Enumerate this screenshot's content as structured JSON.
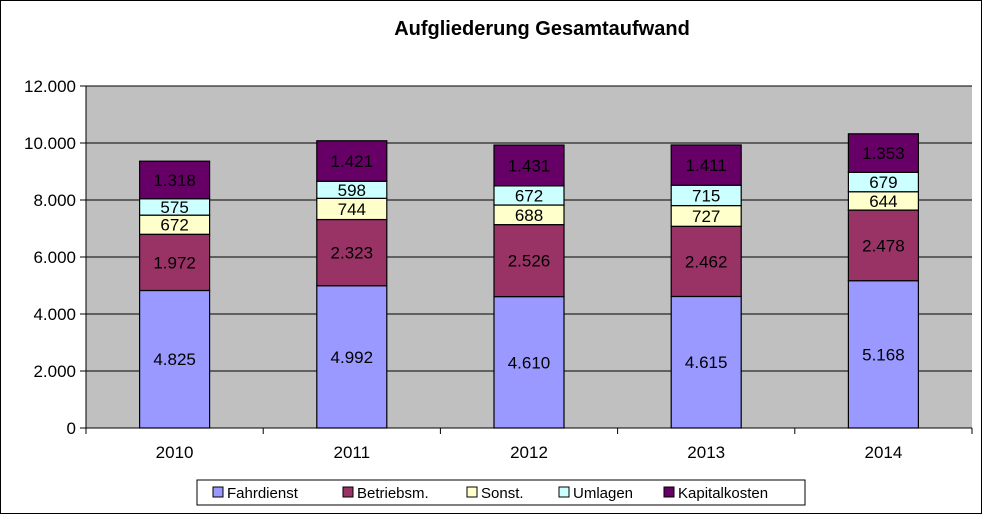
{
  "chart_data": {
    "type": "bar",
    "stacked": true,
    "title": "Aufgliederung Gesamtaufwand",
    "xlabel": "",
    "ylabel": "",
    "categories": [
      "2010",
      "2011",
      "2012",
      "2013",
      "2014"
    ],
    "ylim": [
      0,
      12000
    ],
    "yticks": [
      0,
      2000,
      4000,
      6000,
      8000,
      10000,
      12000
    ],
    "ytick_labels": [
      "0",
      "2.000",
      "4.000",
      "6.000",
      "8.000",
      "10.000",
      "12.000"
    ],
    "grid": true,
    "legend_position": "bottom",
    "plot_background": "#c0c0c0",
    "series": [
      {
        "name": "Fahrdienst",
        "color": "#9999ff",
        "values": [
          4825,
          4992,
          4610,
          4615,
          5168
        ],
        "labels": [
          "4.825",
          "4.992",
          "4.610",
          "4.615",
          "5.168"
        ]
      },
      {
        "name": "Betriebsm.",
        "color": "#993366",
        "values": [
          1972,
          2323,
          2526,
          2462,
          2478
        ],
        "labels": [
          "1.972",
          "2.323",
          "2.526",
          "2.462",
          "2.478"
        ]
      },
      {
        "name": "Sonst.",
        "color": "#ffffcc",
        "values": [
          672,
          744,
          688,
          727,
          644
        ],
        "labels": [
          "672",
          "744",
          "688",
          "727",
          "644"
        ]
      },
      {
        "name": "Umlagen",
        "color": "#ccffff",
        "values": [
          575,
          598,
          672,
          715,
          679
        ],
        "labels": [
          "575",
          "598",
          "672",
          "715",
          "679"
        ]
      },
      {
        "name": "Kapitalkosten",
        "color": "#660066",
        "values": [
          1318,
          1421,
          1431,
          1411,
          1353
        ],
        "labels": [
          "1.318",
          "1.421",
          "1.431",
          "1.411",
          "1.353"
        ]
      }
    ]
  }
}
